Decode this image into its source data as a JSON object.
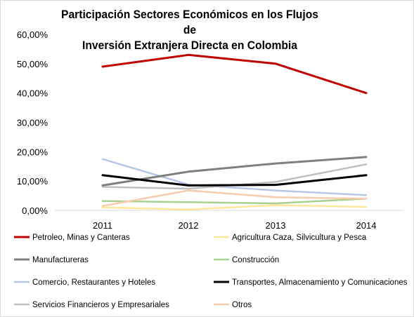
{
  "chart_data": {
    "type": "line",
    "title_lines": [
      "Participación Sectores Económicos en los Flujos de",
      "Inversión Extranjera Directa en Colombia"
    ],
    "categories": [
      "2011",
      "2012",
      "2013",
      "2014"
    ],
    "y_ticks": [
      "0,00%",
      "10,00%",
      "20,00%",
      "30,00%",
      "40,00%",
      "50,00%",
      "60,00%"
    ],
    "ylim": [
      0,
      60
    ],
    "grid": false,
    "legend_position": "bottom",
    "series": [
      {
        "name": "Petroleo,  Minas y Canteras",
        "color": "#c00000",
        "width": 3,
        "values": [
          49.0,
          53.0,
          50.0,
          40.0
        ]
      },
      {
        "name": "Agricultura Caza, Silvicultura y Pesca",
        "color": "#ffe699",
        "width": 2.5,
        "values": [
          1.0,
          0.3,
          1.8,
          1.2
        ]
      },
      {
        "name": "Manufactureras",
        "color": "#7f7f7f",
        "width": 3,
        "values": [
          8.5,
          13.2,
          16.0,
          18.2
        ]
      },
      {
        "name": "Construcción",
        "color": "#a9d18e",
        "width": 2.5,
        "values": [
          3.2,
          2.8,
          2.4,
          4.0
        ]
      },
      {
        "name": "Comercio, Restaurantes y Hoteles",
        "color": "#b4c7e7",
        "width": 2.5,
        "values": [
          17.5,
          8.8,
          6.8,
          5.2
        ]
      },
      {
        "name": "Transportes, Almacenamiento y Comunicaciones",
        "color": "#000000",
        "width": 3,
        "values": [
          12.0,
          8.5,
          8.7,
          12.0
        ]
      },
      {
        "name": "Servicios Financieros y Empresariales",
        "color": "#bfbfbf",
        "width": 2.5,
        "values": [
          8.0,
          7.4,
          9.7,
          15.7
        ]
      },
      {
        "name": "Otros",
        "color": "#f8cbad",
        "width": 2.5,
        "values": [
          1.5,
          6.8,
          4.5,
          4.0
        ]
      }
    ]
  }
}
